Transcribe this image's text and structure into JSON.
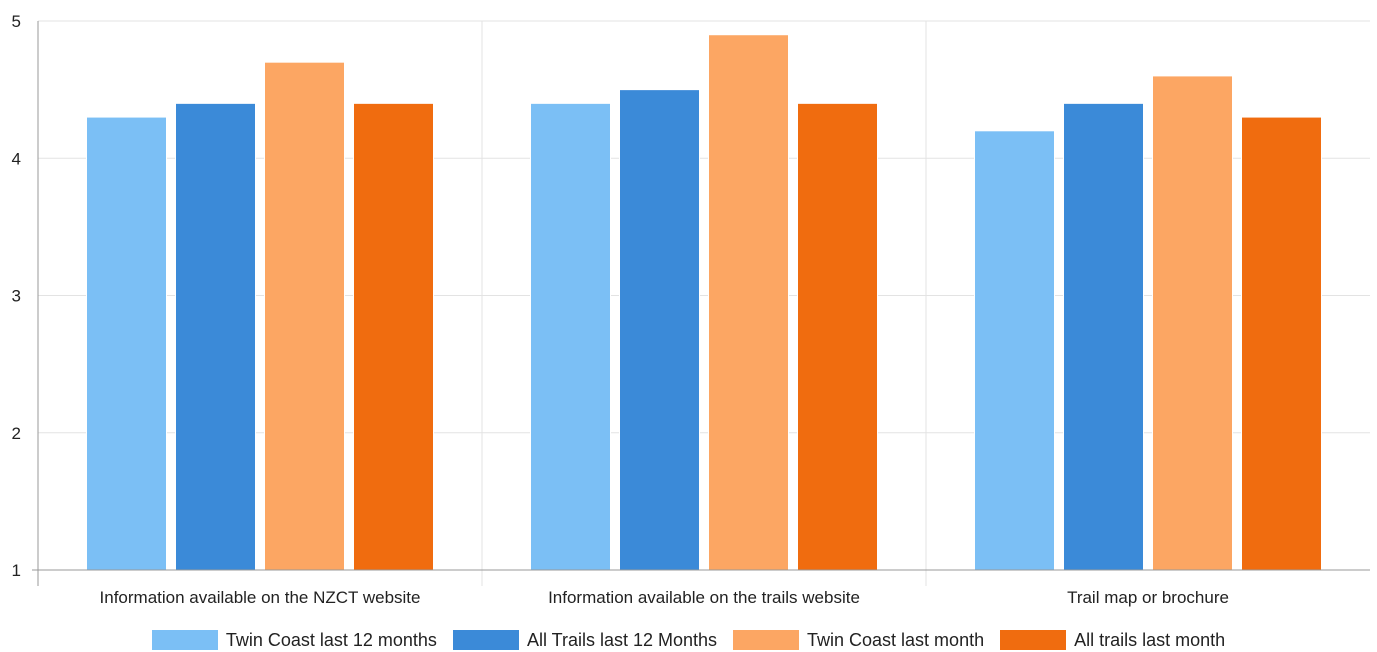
{
  "chart_data": {
    "type": "bar",
    "categories": [
      "Information available on the NZCT website",
      "Information available on the trails website",
      "Trail map or brochure"
    ],
    "series": [
      {
        "name": "Twin Coast last 12 months",
        "color": "#7bbff5",
        "values": [
          4.3,
          4.4,
          4.2
        ]
      },
      {
        "name": "All Trails last 12 Months",
        "color": "#3b8ad8",
        "values": [
          4.4,
          4.5,
          4.4
        ]
      },
      {
        "name": "Twin Coast last month",
        "color": "#fca663",
        "values": [
          4.7,
          4.9,
          4.6
        ]
      },
      {
        "name": "All trails last month",
        "color": "#f06c0f",
        "values": [
          4.4,
          4.4,
          4.3
        ]
      }
    ],
    "ylim": [
      1,
      5
    ],
    "yticks": [
      "1",
      "2",
      "3",
      "4",
      "5"
    ],
    "grid": true,
    "legend_position": "bottom"
  }
}
